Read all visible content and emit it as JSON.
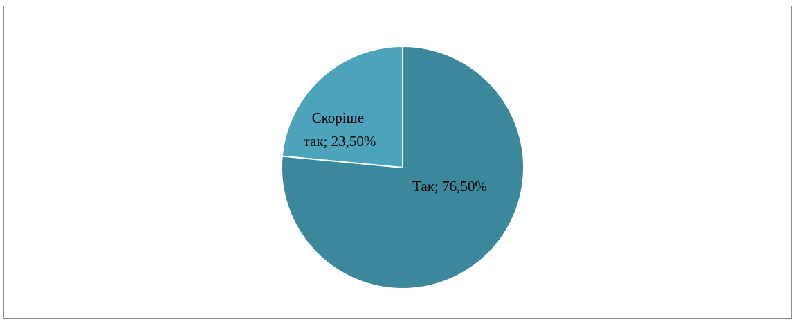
{
  "chart_data": {
    "type": "pie",
    "title": "",
    "slices": [
      {
        "label": "Так; 76,50%",
        "category": "Так",
        "value": 76.5,
        "color": "#3b879b"
      },
      {
        "label": "Скоріше так; 23,50%",
        "category": "Скоріше так",
        "value": 23.5,
        "color": "#4ba3bc"
      }
    ],
    "start_angle_deg": 0,
    "direction": "clockwise",
    "legend": "none",
    "slice_border_color": "#ffffff"
  }
}
